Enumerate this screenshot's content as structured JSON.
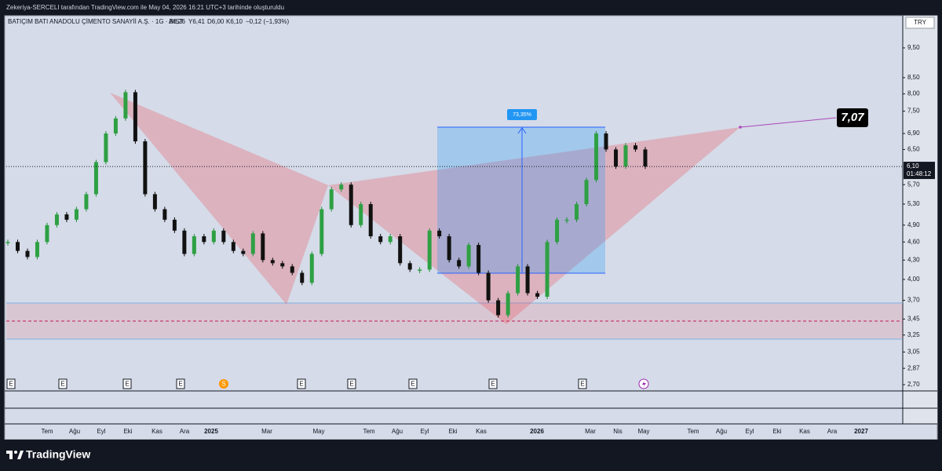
{
  "header": {
    "attribution": "Zekeriya-SERCELI tarafından TradingView.com ile May 04, 2026 16:21 UTC+3 tarihinde oluşturuldu",
    "symbol": "BATIÇIM BATI ANADOLU ÇİMENTO SANAYİİ A.Ş. · 1G · BIST",
    "open": "A6,26",
    "high": "Y6,41",
    "low": "D6,00",
    "close": "K6,10",
    "change": "−0,12 (−1,93%)"
  },
  "currency": "TRY",
  "price_axis": {
    "log_scale": true,
    "ticks": [
      {
        "value": 9.5,
        "label": "9,50"
      },
      {
        "value": 8.5,
        "label": "8,50"
      },
      {
        "value": 8,
        "label": "8,00"
      },
      {
        "value": 7.5,
        "label": "7,50"
      },
      {
        "value": 6.9,
        "label": "6,90"
      },
      {
        "value": 6.5,
        "label": "6,50"
      },
      {
        "value": 5.7,
        "label": "5,70"
      },
      {
        "value": 5.3,
        "label": "5,30"
      },
      {
        "value": 4.9,
        "label": "4,90"
      },
      {
        "value": 4.6,
        "label": "4,60"
      },
      {
        "value": 4.3,
        "label": "4,30"
      },
      {
        "value": 4,
        "label": "4,00"
      },
      {
        "value": 3.7,
        "label": "3,70"
      },
      {
        "value": 3.45,
        "label": "3,45"
      },
      {
        "value": 3.25,
        "label": "3,25"
      },
      {
        "value": 3.05,
        "label": "3,05"
      },
      {
        "value": 2.87,
        "label": "2,87"
      },
      {
        "value": 2.7,
        "label": "2,70"
      }
    ],
    "last_price": {
      "value": 6.1,
      "label": "6,10"
    },
    "countdown": "01:48:12"
  },
  "time_axis": {
    "labels": [
      "Tem",
      "Ağu",
      "Eyl",
      "Eki",
      "Kas",
      "Ara",
      "2025",
      "Mar",
      "May",
      "Tem",
      "Ağu",
      "Eyl",
      "Eki",
      "Kas",
      "2026",
      "Mar",
      "Nis",
      "May",
      "Tem",
      "Ağu",
      "Eyl",
      "Eki",
      "Kas",
      "Ara",
      "2027"
    ]
  },
  "events": [
    "E",
    "E",
    "E",
    "E",
    "S",
    "E",
    "E",
    "E",
    "E",
    "E"
  ],
  "drawings": {
    "range_label": "73,35%",
    "target_label": "7,07"
  },
  "price_history": {
    "closes": [
      4.6,
      4.45,
      4.35,
      4.6,
      4.9,
      5.1,
      5.0,
      5.2,
      5.5,
      6.2,
      6.9,
      7.3,
      8.05,
      6.7,
      5.5,
      5.2,
      5.0,
      4.8,
      4.4,
      4.7,
      4.6,
      4.8,
      4.6,
      4.45,
      4.4,
      4.75,
      4.3,
      4.25,
      4.2,
      4.1,
      3.95,
      4.4,
      5.2,
      5.6,
      5.7,
      4.9,
      5.3,
      4.7,
      4.6,
      4.7,
      4.25,
      4.15,
      4.15,
      4.8,
      4.7,
      4.3,
      4.2,
      4.55,
      4.1,
      3.7,
      3.5,
      3.8,
      4.2,
      3.8,
      3.75,
      4.6,
      5.0,
      5.0,
      5.3,
      5.8,
      6.9,
      6.5,
      6.1,
      6.6,
      6.5,
      6.1
    ]
  },
  "footer": {
    "brand": "TradingView"
  }
}
